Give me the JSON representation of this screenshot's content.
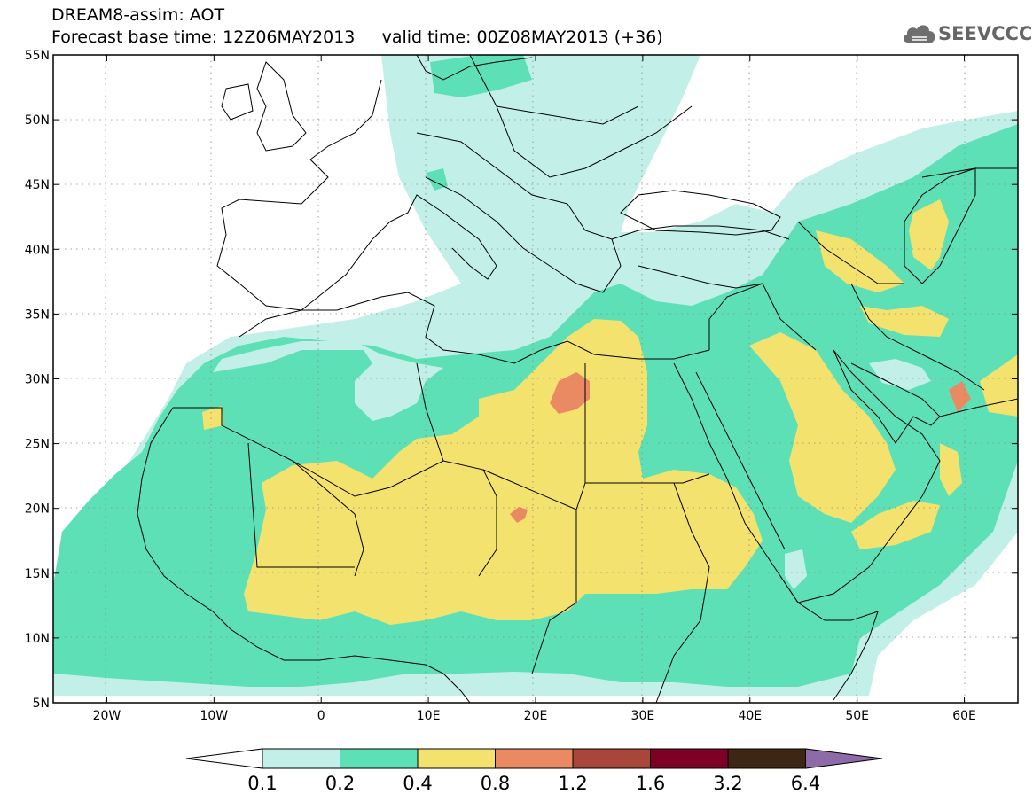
{
  "header": {
    "line1": "DREAM8-assim: AOT",
    "line2": "Forecast base time: 12Z06MAY2013     valid time: 00Z08MAY2013 (+36)"
  },
  "logo": {
    "text": "SEEVCCC",
    "icon": "cloud-logo-icon"
  },
  "map": {
    "lon_range": [
      -25,
      65
    ],
    "lat_range": [
      5,
      55
    ],
    "grid": "dotted",
    "lat_ticks": [
      {
        "v": 55,
        "label": "55N"
      },
      {
        "v": 50,
        "label": "50N"
      },
      {
        "v": 45,
        "label": "45N"
      },
      {
        "v": 40,
        "label": "40N"
      },
      {
        "v": 35,
        "label": "35N"
      },
      {
        "v": 30,
        "label": "30N"
      },
      {
        "v": 25,
        "label": "25N"
      },
      {
        "v": 20,
        "label": "20N"
      },
      {
        "v": 15,
        "label": "15N"
      },
      {
        "v": 10,
        "label": "10N"
      },
      {
        "v": 5,
        "label": "5N"
      }
    ],
    "lon_ticks": [
      {
        "v": -20,
        "label": "20W"
      },
      {
        "v": -10,
        "label": "10W"
      },
      {
        "v": 0,
        "label": "0"
      },
      {
        "v": 10,
        "label": "10E"
      },
      {
        "v": 20,
        "label": "20E"
      },
      {
        "v": 30,
        "label": "30E"
      },
      {
        "v": 40,
        "label": "40E"
      },
      {
        "v": 50,
        "label": "50E"
      },
      {
        "v": 60,
        "label": "60E"
      }
    ]
  },
  "colorbar": {
    "under_color": "#ffffff",
    "over_color": "#8c6ba8",
    "bins": [
      {
        "color": "#c2f0e8"
      },
      {
        "color": "#5ee0b6"
      },
      {
        "color": "#f4e26e"
      },
      {
        "color": "#e98a63"
      },
      {
        "color": "#a8463a"
      },
      {
        "color": "#7e0025"
      },
      {
        "color": "#3d2614"
      }
    ],
    "labels": [
      "0.1",
      "0.2",
      "0.4",
      "0.8",
      "1.2",
      "1.6",
      "3.2",
      "6.4"
    ]
  }
}
